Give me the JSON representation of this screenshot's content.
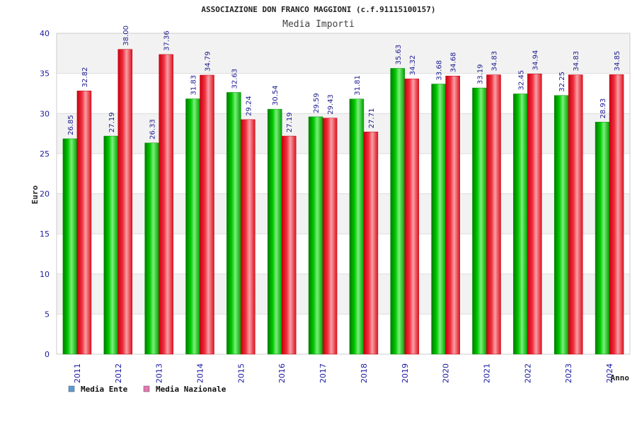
{
  "chart_data": {
    "type": "bar",
    "title": "ASSOCIAZIONE DON FRANCO MAGGIONI (c.f.91115100157)",
    "subtitle": "Media Importi",
    "xlabel": "Anno",
    "ylabel": "Euro",
    "ylim": [
      0,
      40
    ],
    "yticks": [
      0,
      5,
      10,
      15,
      20,
      25,
      30,
      35,
      40
    ],
    "categories": [
      "2011",
      "2012",
      "2013",
      "2014",
      "2015",
      "2016",
      "2017",
      "2018",
      "2019",
      "2020",
      "2021",
      "2022",
      "2023",
      "2024"
    ],
    "series": [
      {
        "name": "Media Ente",
        "color": "#00b000",
        "legend_color": "#5b9bd5",
        "values": [
          26.85,
          27.19,
          26.33,
          31.83,
          32.63,
          30.54,
          29.59,
          31.81,
          35.63,
          33.68,
          33.19,
          32.45,
          32.25,
          28.93
        ]
      },
      {
        "name": "Media Nazionale",
        "color": "#e8101e",
        "legend_color": "#e377b0",
        "values": [
          32.82,
          38.0,
          37.36,
          34.79,
          29.24,
          27.19,
          29.43,
          27.71,
          34.32,
          34.68,
          34.83,
          34.94,
          34.83,
          34.85
        ]
      }
    ],
    "value_labels": [
      [
        "26.85",
        "27.19",
        "26.33",
        "31.83",
        "32.63",
        "30.54",
        "29.59",
        "31.81",
        "35.63",
        "33.68",
        "33.19",
        "32.45",
        "32.25",
        "28.93"
      ],
      [
        "32.82",
        "38.00",
        "37.36",
        "34.79",
        "29.24",
        "27.19",
        "29.43",
        "27.71",
        "34.32",
        "34.68",
        "34.83",
        "34.94",
        "34.83",
        "34.85"
      ]
    ],
    "grid": true,
    "legend_position": "bottom-left"
  }
}
